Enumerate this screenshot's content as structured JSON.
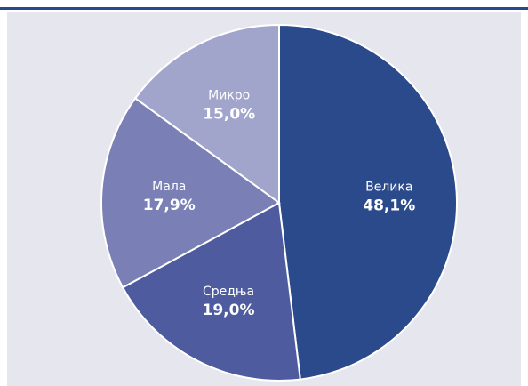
{
  "chart_data": {
    "type": "pie",
    "categories": [
      "Велика",
      "Средња",
      "Мала",
      "Микро"
    ],
    "values": [
      48.1,
      19.0,
      17.9,
      15.0
    ],
    "value_labels": [
      "48,1%",
      "19,0%",
      "17,9%",
      "15,0%"
    ],
    "colors": [
      "#2b4a8b",
      "#4e5c9f",
      "#7a80b5",
      "#a2a5cb"
    ]
  }
}
